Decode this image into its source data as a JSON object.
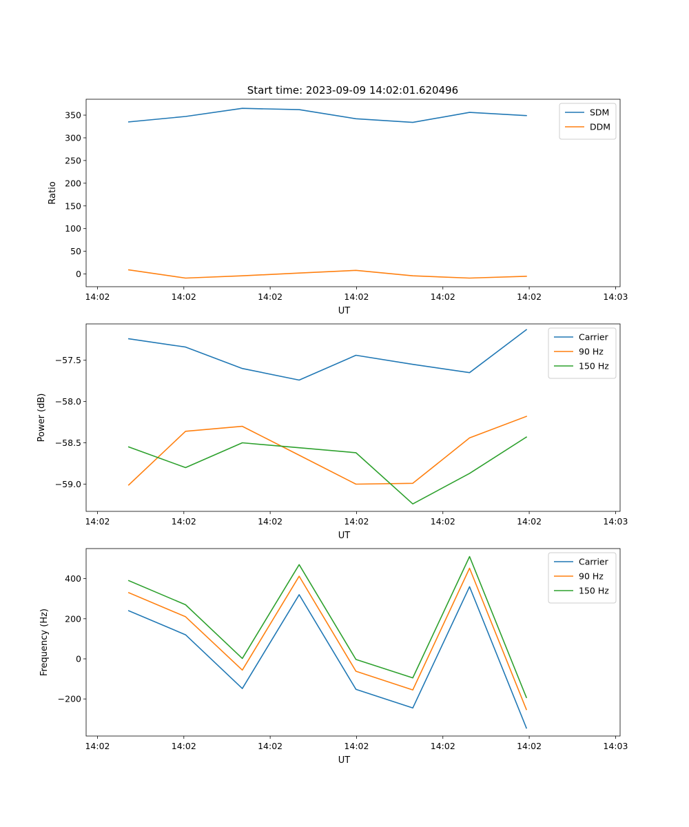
{
  "figure_title": "Start time: 2023-09-09 14:02:01.620496",
  "chart_data": [
    {
      "type": "line",
      "title": "Start time: 2023-09-09 14:02:01.620496",
      "xlabel": "UT",
      "ylabel": "Ratio",
      "x": [
        0,
        1,
        2,
        3,
        4,
        5,
        6,
        7
      ],
      "xlim": [
        -0.75,
        8.65
      ],
      "x_ticks": [
        -0.55,
        0.97,
        2.49,
        4.01,
        5.53,
        7.05,
        8.57
      ],
      "x_tick_labels": [
        "14:02",
        "14:02",
        "14:02",
        "14:02",
        "14:02",
        "14:02",
        "14:03"
      ],
      "ylim": [
        -28,
        385
      ],
      "y_ticks": [
        0,
        50,
        100,
        150,
        200,
        250,
        300,
        350
      ],
      "y_tick_labels": [
        "0",
        "50",
        "100",
        "150",
        "200",
        "250",
        "300",
        "350"
      ],
      "legend": "top-right",
      "series": [
        {
          "name": "SDM",
          "color": "#1f77b4",
          "values": [
            335,
            347,
            365,
            362,
            342,
            334,
            356,
            349
          ]
        },
        {
          "name": "DDM",
          "color": "#ff7f0e",
          "values": [
            9,
            -9,
            -4,
            2,
            8,
            -4,
            -9,
            -5
          ]
        }
      ]
    },
    {
      "type": "line",
      "title": "",
      "xlabel": "UT",
      "ylabel": "Power (dB)",
      "x": [
        0,
        1,
        2,
        3,
        4,
        5,
        6,
        7
      ],
      "xlim": [
        -0.75,
        8.65
      ],
      "x_ticks": [
        -0.55,
        0.97,
        2.49,
        4.01,
        5.53,
        7.05,
        8.57
      ],
      "x_tick_labels": [
        "14:02",
        "14:02",
        "14:02",
        "14:02",
        "14:02",
        "14:02",
        "14:03"
      ],
      "ylim": [
        -59.33,
        -57.06
      ],
      "y_ticks": [
        -59.0,
        -58.5,
        -58.0,
        -57.5
      ],
      "y_tick_labels": [
        "−59.0",
        "−58.5",
        "−58.0",
        "−57.5"
      ],
      "legend": "top-right",
      "series": [
        {
          "name": "Carrier",
          "color": "#1f77b4",
          "values": [
            -57.24,
            -57.34,
            -57.6,
            -57.74,
            -57.44,
            -57.55,
            -57.65,
            -57.13
          ]
        },
        {
          "name": "90 Hz",
          "color": "#ff7f0e",
          "values": [
            -59.01,
            -58.36,
            -58.3,
            -58.65,
            -59.0,
            -58.99,
            -58.44,
            -58.18
          ]
        },
        {
          "name": "150 Hz",
          "color": "#2ca02c",
          "values": [
            -58.55,
            -58.8,
            -58.5,
            -58.56,
            -58.62,
            -59.24,
            -58.87,
            -58.43
          ]
        }
      ]
    },
    {
      "type": "line",
      "title": "",
      "xlabel": "UT",
      "ylabel": "Frequency (Hz)",
      "x": [
        0,
        1,
        2,
        3,
        4,
        5,
        6,
        7
      ],
      "xlim": [
        -0.75,
        8.65
      ],
      "x_ticks": [
        -0.55,
        0.97,
        2.49,
        4.01,
        5.53,
        7.05,
        8.57
      ],
      "x_tick_labels": [
        "14:02",
        "14:02",
        "14:02",
        "14:02",
        "14:02",
        "14:02",
        "14:03"
      ],
      "ylim": [
        -385,
        550
      ],
      "y_ticks": [
        -200,
        0,
        200,
        400
      ],
      "y_tick_labels": [
        "−200",
        "0",
        "200",
        "400"
      ],
      "legend": "top-right",
      "series": [
        {
          "name": "Carrier",
          "color": "#1f77b4",
          "values": [
            240,
            120,
            -148,
            320,
            -152,
            -245,
            360,
            -345
          ]
        },
        {
          "name": "90 Hz",
          "color": "#ff7f0e",
          "values": [
            330,
            210,
            -56,
            412,
            -62,
            -155,
            452,
            -253
          ]
        },
        {
          "name": "150 Hz",
          "color": "#2ca02c",
          "values": [
            390,
            270,
            2,
            470,
            -3,
            -95,
            510,
            -193
          ]
        }
      ]
    }
  ]
}
